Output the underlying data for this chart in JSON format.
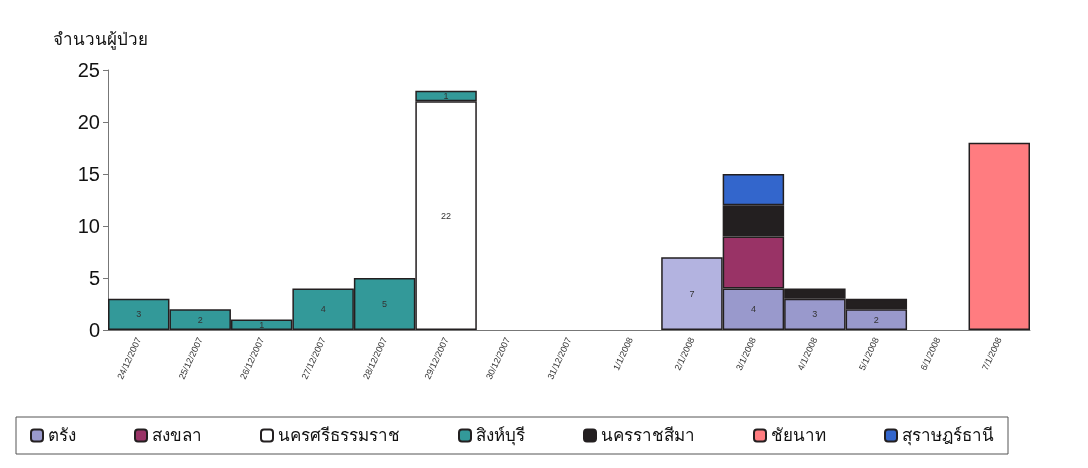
{
  "chart_data": {
    "type": "bar",
    "stacked": true,
    "ylabel": "จำนวนผู้ป่วย",
    "categories": [
      "24/12/2007",
      "25/12/2007",
      "26/12/2007",
      "27/12/2007",
      "28/12/2007",
      "29/12/2007",
      "30/12/2007",
      "31/12/2007",
      "1/1/2008",
      "2/1/2008",
      "3/1/2008",
      "4/1/2008",
      "5/1/2008",
      "6/1/2008",
      "7/1/2008"
    ],
    "ylim": [
      0,
      25
    ],
    "yticks": [
      0,
      5,
      10,
      15,
      20,
      25
    ],
    "grid": false,
    "legend": "bottom",
    "series": [
      {
        "name": "ตรัง",
        "color": "#9999cc",
        "values": [
          null,
          null,
          null,
          null,
          null,
          null,
          null,
          null,
          null,
          null,
          4,
          3,
          2,
          null,
          null
        ],
        "value_labels": [
          null,
          null,
          null,
          null,
          null,
          null,
          null,
          null,
          null,
          null,
          "4",
          "3",
          "2",
          null,
          null
        ]
      },
      {
        "color": "#b3b3e0",
        "values": [
          null,
          null,
          null,
          null,
          null,
          null,
          null,
          null,
          null,
          7,
          null,
          null,
          null,
          null,
          null
        ],
        "value_labels": [
          null,
          null,
          null,
          null,
          null,
          null,
          null,
          null,
          null,
          "7",
          null,
          null,
          null,
          null,
          null
        ]
      },
      {
        "name": "สงขลา",
        "color": "#993366",
        "values": [
          null,
          null,
          null,
          null,
          null,
          null,
          null,
          null,
          null,
          null,
          5,
          null,
          null,
          null,
          null
        ]
      },
      {
        "name": "นครศรีธรรมราช",
        "color": "#ffffff",
        "values": [
          null,
          null,
          null,
          null,
          null,
          22,
          null,
          null,
          null,
          null,
          null,
          null,
          null,
          null,
          null
        ],
        "value_labels": [
          null,
          null,
          null,
          null,
          null,
          "22",
          null,
          null,
          null,
          null,
          null,
          null,
          null,
          null,
          null
        ]
      },
      {
        "name": "สิงห์บุรี",
        "color": "#339999",
        "values": [
          3,
          2,
          1,
          4,
          5,
          1,
          null,
          null,
          null,
          null,
          null,
          null,
          null,
          null,
          null
        ],
        "value_labels": [
          "3",
          "2",
          "1",
          "4",
          "5",
          "1",
          null,
          null,
          null,
          null,
          null,
          null,
          null,
          null,
          null
        ]
      },
      {
        "name": "นครราชสีมา",
        "color": "#231f20",
        "values": [
          null,
          null,
          null,
          null,
          null,
          null,
          null,
          null,
          null,
          null,
          3,
          1,
          1,
          null,
          null
        ]
      },
      {
        "name": "ชัยนาท",
        "color": "#ff7c80",
        "values": [
          null,
          null,
          null,
          null,
          null,
          null,
          null,
          null,
          null,
          null,
          null,
          null,
          null,
          null,
          18
        ]
      },
      {
        "name": "สุราษฎร์ธานี",
        "color": "#3366cc",
        "values": [
          null,
          null,
          null,
          null,
          null,
          null,
          null,
          null,
          null,
          null,
          3,
          null,
          null,
          null,
          null
        ]
      }
    ]
  }
}
